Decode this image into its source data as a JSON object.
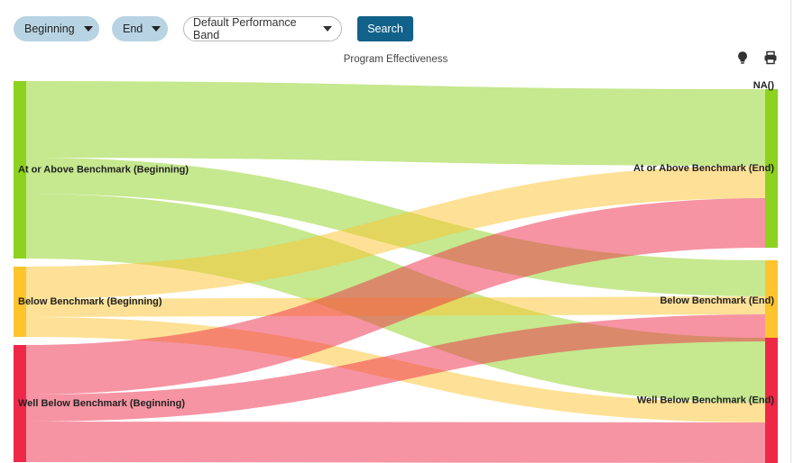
{
  "toolbar": {
    "beginning_label": "Beginning",
    "end_label": "End",
    "band_select_value": "Default Performance Band",
    "search_label": "Search"
  },
  "icons": {
    "bulb": "lightbulb-icon",
    "print": "printer-icon"
  },
  "chart_data": {
    "type": "sankey",
    "title": "Program Effectiveness",
    "nodes_left": [
      {
        "name": "At or Above Benchmark (Beginning)",
        "color": "#8dd21f"
      },
      {
        "name": "Below Benchmark (Beginning)",
        "color": "#fec42e"
      },
      {
        "name": "Well Below Benchmark (Beginning)",
        "color": "#ee2948"
      }
    ],
    "nodes_right": [
      {
        "name": "NA()",
        "color": "#8dd21f"
      },
      {
        "name": "At or Above Benchmark (End)",
        "color": "#8dd21f"
      },
      {
        "name": "Below Benchmark (End)",
        "color": "#fec42e"
      },
      {
        "name": "Well Below Benchmark (End)",
        "color": "#ee2948"
      }
    ],
    "links": [
      {
        "source": 0,
        "target": 1,
        "value": 85,
        "color": "#8dd21f"
      },
      {
        "source": 0,
        "target": 2,
        "value": 40,
        "color": "#8dd21f"
      },
      {
        "source": 0,
        "target": 3,
        "value": 72,
        "color": "#8dd21f"
      },
      {
        "source": 1,
        "target": 1,
        "value": 36,
        "color": "#fec42e"
      },
      {
        "source": 1,
        "target": 2,
        "value": 20,
        "color": "#fec42e"
      },
      {
        "source": 1,
        "target": 3,
        "value": 22,
        "color": "#fec42e"
      },
      {
        "source": 2,
        "target": 1,
        "value": 55,
        "color": "#ee2948"
      },
      {
        "source": 2,
        "target": 2,
        "value": 30,
        "color": "#ee2948"
      },
      {
        "source": 2,
        "target": 3,
        "value": 45,
        "color": "#ee2948"
      }
    ]
  }
}
